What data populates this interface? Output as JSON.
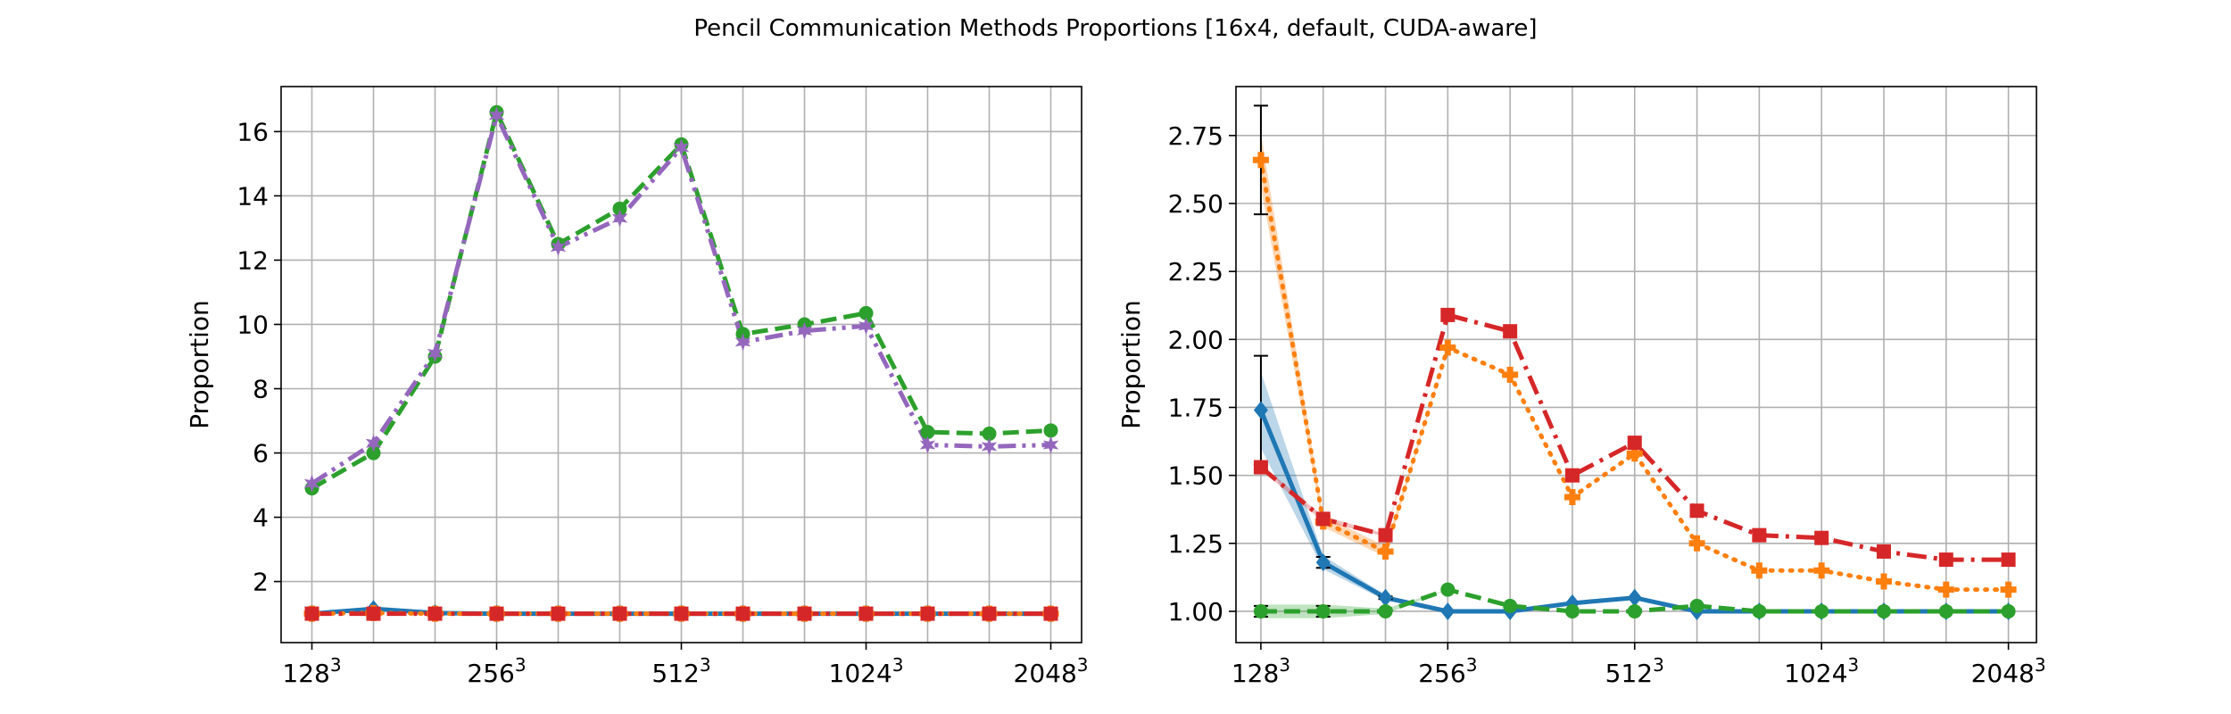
{
  "figure": {
    "title": "Pencil Communication Methods Proportions [16x4, default, CUDA-aware]"
  },
  "colors": {
    "blue": "#1f77b4",
    "orange": "#ff7f0e",
    "green": "#2ca02c",
    "red": "#d62728",
    "purple": "#9467bd",
    "grid": "#b0b0b0"
  },
  "chart_data": [
    {
      "type": "line",
      "ylabel": "Proportion",
      "x": [
        1,
        2,
        3,
        4,
        5,
        6,
        7,
        8,
        9,
        10,
        11,
        12,
        13
      ],
      "xtick_positions": [
        1,
        4,
        7,
        10,
        13
      ],
      "xtick_labels": [
        "128",
        "256",
        "512",
        "1024",
        "2048"
      ],
      "xtick_superscript": "3",
      "xlim": [
        0.5,
        13.5
      ],
      "ylim": [
        0.1,
        17.4
      ],
      "yticks": [
        2,
        4,
        6,
        8,
        10,
        12,
        14,
        16
      ],
      "grid": true,
      "series": [
        {
          "color": "#1f77b4",
          "dash": "solid",
          "marker": "diamond",
          "values": [
            1.0,
            1.15,
            1.02,
            1.0,
            1.0,
            1.0,
            1.0,
            1.0,
            1.0,
            1.0,
            1.0,
            1.0,
            1.0
          ]
        },
        {
          "color": "#ff7f0e",
          "dash": "dotted",
          "marker": "plus",
          "values": [
            1.0,
            1.02,
            1.0,
            1.0,
            1.0,
            1.0,
            1.0,
            1.0,
            1.0,
            1.0,
            1.0,
            1.0,
            1.0
          ]
        },
        {
          "color": "#2ca02c",
          "dash": "dashed",
          "marker": "circle",
          "values": [
            4.9,
            6.0,
            9.0,
            16.6,
            12.5,
            13.6,
            15.6,
            9.7,
            10.0,
            10.35,
            6.65,
            6.6,
            6.7
          ]
        },
        {
          "color": "#d62728",
          "dash": "dashdot",
          "marker": "square",
          "values": [
            1.0,
            1.0,
            1.0,
            1.0,
            1.0,
            1.0,
            1.0,
            1.0,
            1.0,
            1.0,
            1.0,
            1.0,
            1.0
          ]
        },
        {
          "color": "#9467bd",
          "dash": "dashdotdot",
          "marker": "star",
          "values": [
            5.05,
            6.3,
            9.1,
            16.5,
            12.4,
            13.3,
            15.5,
            9.45,
            9.8,
            9.95,
            6.25,
            6.2,
            6.25
          ]
        }
      ]
    },
    {
      "type": "line",
      "ylabel": "Proportion",
      "x": [
        1,
        2,
        3,
        4,
        5,
        6,
        7,
        8,
        9,
        10,
        11,
        12,
        13
      ],
      "xtick_positions": [
        1,
        4,
        7,
        10,
        13
      ],
      "xtick_labels": [
        "128",
        "256",
        "512",
        "1024",
        "2048"
      ],
      "xtick_superscript": "3",
      "xlim": [
        0.6,
        13.45
      ],
      "ylim": [
        0.885,
        2.93
      ],
      "yticks": [
        1.0,
        1.25,
        1.5,
        1.75,
        2.0,
        2.25,
        2.5,
        2.75
      ],
      "ytick_labels": [
        "1.00",
        "1.25",
        "1.50",
        "1.75",
        "2.00",
        "2.25",
        "2.50",
        "2.75"
      ],
      "grid": true,
      "series": [
        {
          "color": "#1f77b4",
          "dash": "solid",
          "marker": "diamond",
          "values": [
            1.74,
            1.18,
            1.05,
            1.0,
            1.0,
            1.03,
            1.05,
            1.0,
            1.0,
            1.0,
            1.0,
            1.0,
            1.0
          ],
          "err": [
            0.2,
            0.02,
            0.005,
            0,
            0,
            0,
            0,
            0,
            0,
            0,
            0,
            0,
            0
          ],
          "band": [
            0.14,
            0.025,
            0.01,
            0,
            0,
            0,
            0,
            0,
            0,
            0,
            0,
            0,
            0
          ]
        },
        {
          "color": "#ff7f0e",
          "dash": "dotted",
          "marker": "plus",
          "values": [
            2.66,
            1.33,
            1.22,
            1.97,
            1.87,
            1.42,
            1.58,
            1.25,
            1.15,
            1.15,
            1.11,
            1.08,
            1.08
          ],
          "err": [
            0.2,
            0,
            0,
            0,
            0,
            0,
            0,
            0,
            0,
            0,
            0,
            0,
            0
          ],
          "band": [
            0.1,
            0.02,
            0.02,
            0,
            0,
            0,
            0,
            0,
            0,
            0,
            0,
            0,
            0
          ]
        },
        {
          "color": "#2ca02c",
          "dash": "dashed",
          "marker": "circle",
          "values": [
            1.0,
            1.0,
            1.0,
            1.08,
            1.02,
            1.0,
            1.0,
            1.02,
            1.0,
            1.0,
            1.0,
            1.0,
            1.0
          ],
          "err": [
            0.02,
            0.02,
            0,
            0,
            0,
            0,
            0,
            0,
            0,
            0,
            0,
            0,
            0
          ],
          "band": [
            0.025,
            0.025,
            0.01,
            0,
            0,
            0,
            0,
            0,
            0,
            0,
            0,
            0,
            0
          ]
        },
        {
          "color": "#d62728",
          "dash": "dashdot",
          "marker": "square",
          "values": [
            1.53,
            1.34,
            1.28,
            2.09,
            2.03,
            1.5,
            1.62,
            1.37,
            1.28,
            1.27,
            1.22,
            1.19,
            1.19
          ],
          "err": [
            0.01,
            0.01,
            0,
            0,
            0,
            0,
            0,
            0,
            0,
            0,
            0,
            0,
            0
          ],
          "band": [
            0.01,
            0.01,
            0.005,
            0,
            0,
            0,
            0,
            0,
            0,
            0,
            0,
            0,
            0
          ]
        }
      ]
    }
  ]
}
